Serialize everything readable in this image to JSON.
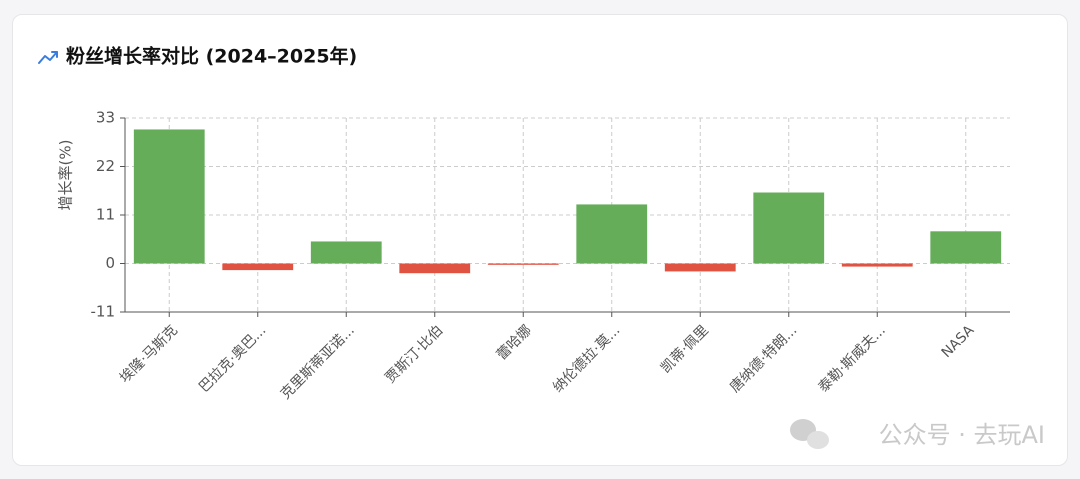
{
  "chart_data": {
    "type": "bar",
    "title": "粉丝增长率对比 (2024–2025年)",
    "y_label": "增长率(%)",
    "categories": [
      "埃隆·马斯克",
      "巴拉克·奥巴...",
      "克里斯蒂亚诺...",
      "贾斯汀·比伯",
      "蕾哈娜",
      "纳伦德拉·莫...",
      "凯蒂·佩里",
      "唐纳德·特朗...",
      "泰勒·斯威夫...",
      "NASA"
    ],
    "values": [
      30.4,
      -1.5,
      5.0,
      -2.2,
      -0.3,
      13.4,
      -1.8,
      16.1,
      -0.7,
      7.3
    ],
    "positive_color": "#66ad5a",
    "negative_color": "#e05343",
    "ylim": [
      -11,
      33
    ],
    "yticks": [
      -11,
      0,
      11,
      22,
      33
    ],
    "grid": true
  },
  "watermark": "公众号 · 去玩AI"
}
